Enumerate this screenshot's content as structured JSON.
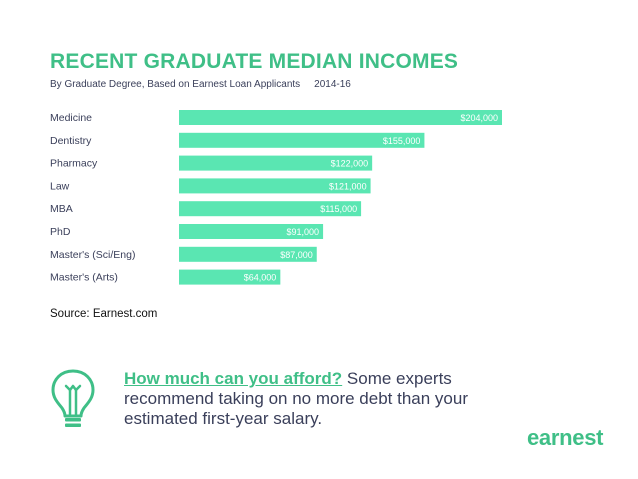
{
  "colors": {
    "accent": "#5ae6b2",
    "title": "#3fbf87",
    "text": "#3a3f5a",
    "bar_label": "#ffffff"
  },
  "title": "RECENT GRADUATE MEDIAN INCOMES",
  "subtitle": "By Graduate Degree, Based on Earnest Loan Applicants",
  "period": "2014-16",
  "source": "Source: Earnest.com",
  "cta": {
    "link_text": "How much can you afford?",
    "body_text": " Some experts recommend taking on no more debt than your estimated first-year salary."
  },
  "logo": {
    "text": "earnest"
  },
  "icons": {
    "bulb": "lightbulb-icon"
  },
  "chart_data": {
    "type": "bar",
    "orientation": "horizontal",
    "categories": [
      "Medicine",
      "Dentistry",
      "Pharmacy",
      "Law",
      "MBA",
      "PhD",
      "Master's (Sci/Eng)",
      "Master's (Arts)"
    ],
    "values": [
      204000,
      155000,
      122000,
      121000,
      115000,
      91000,
      87000,
      64000
    ],
    "data_labels": [
      "$204,000",
      "$155,000",
      "$122,000",
      "$121,000",
      "$115,000",
      "$91,000",
      "$87,000",
      "$64,000"
    ],
    "title": "RECENT GRADUATE MEDIAN INCOMES",
    "subtitle": "By Graduate Degree, Based on Earnest Loan Applicants",
    "xlim": [
      0,
      204000
    ],
    "grid": false,
    "legend": "none"
  }
}
